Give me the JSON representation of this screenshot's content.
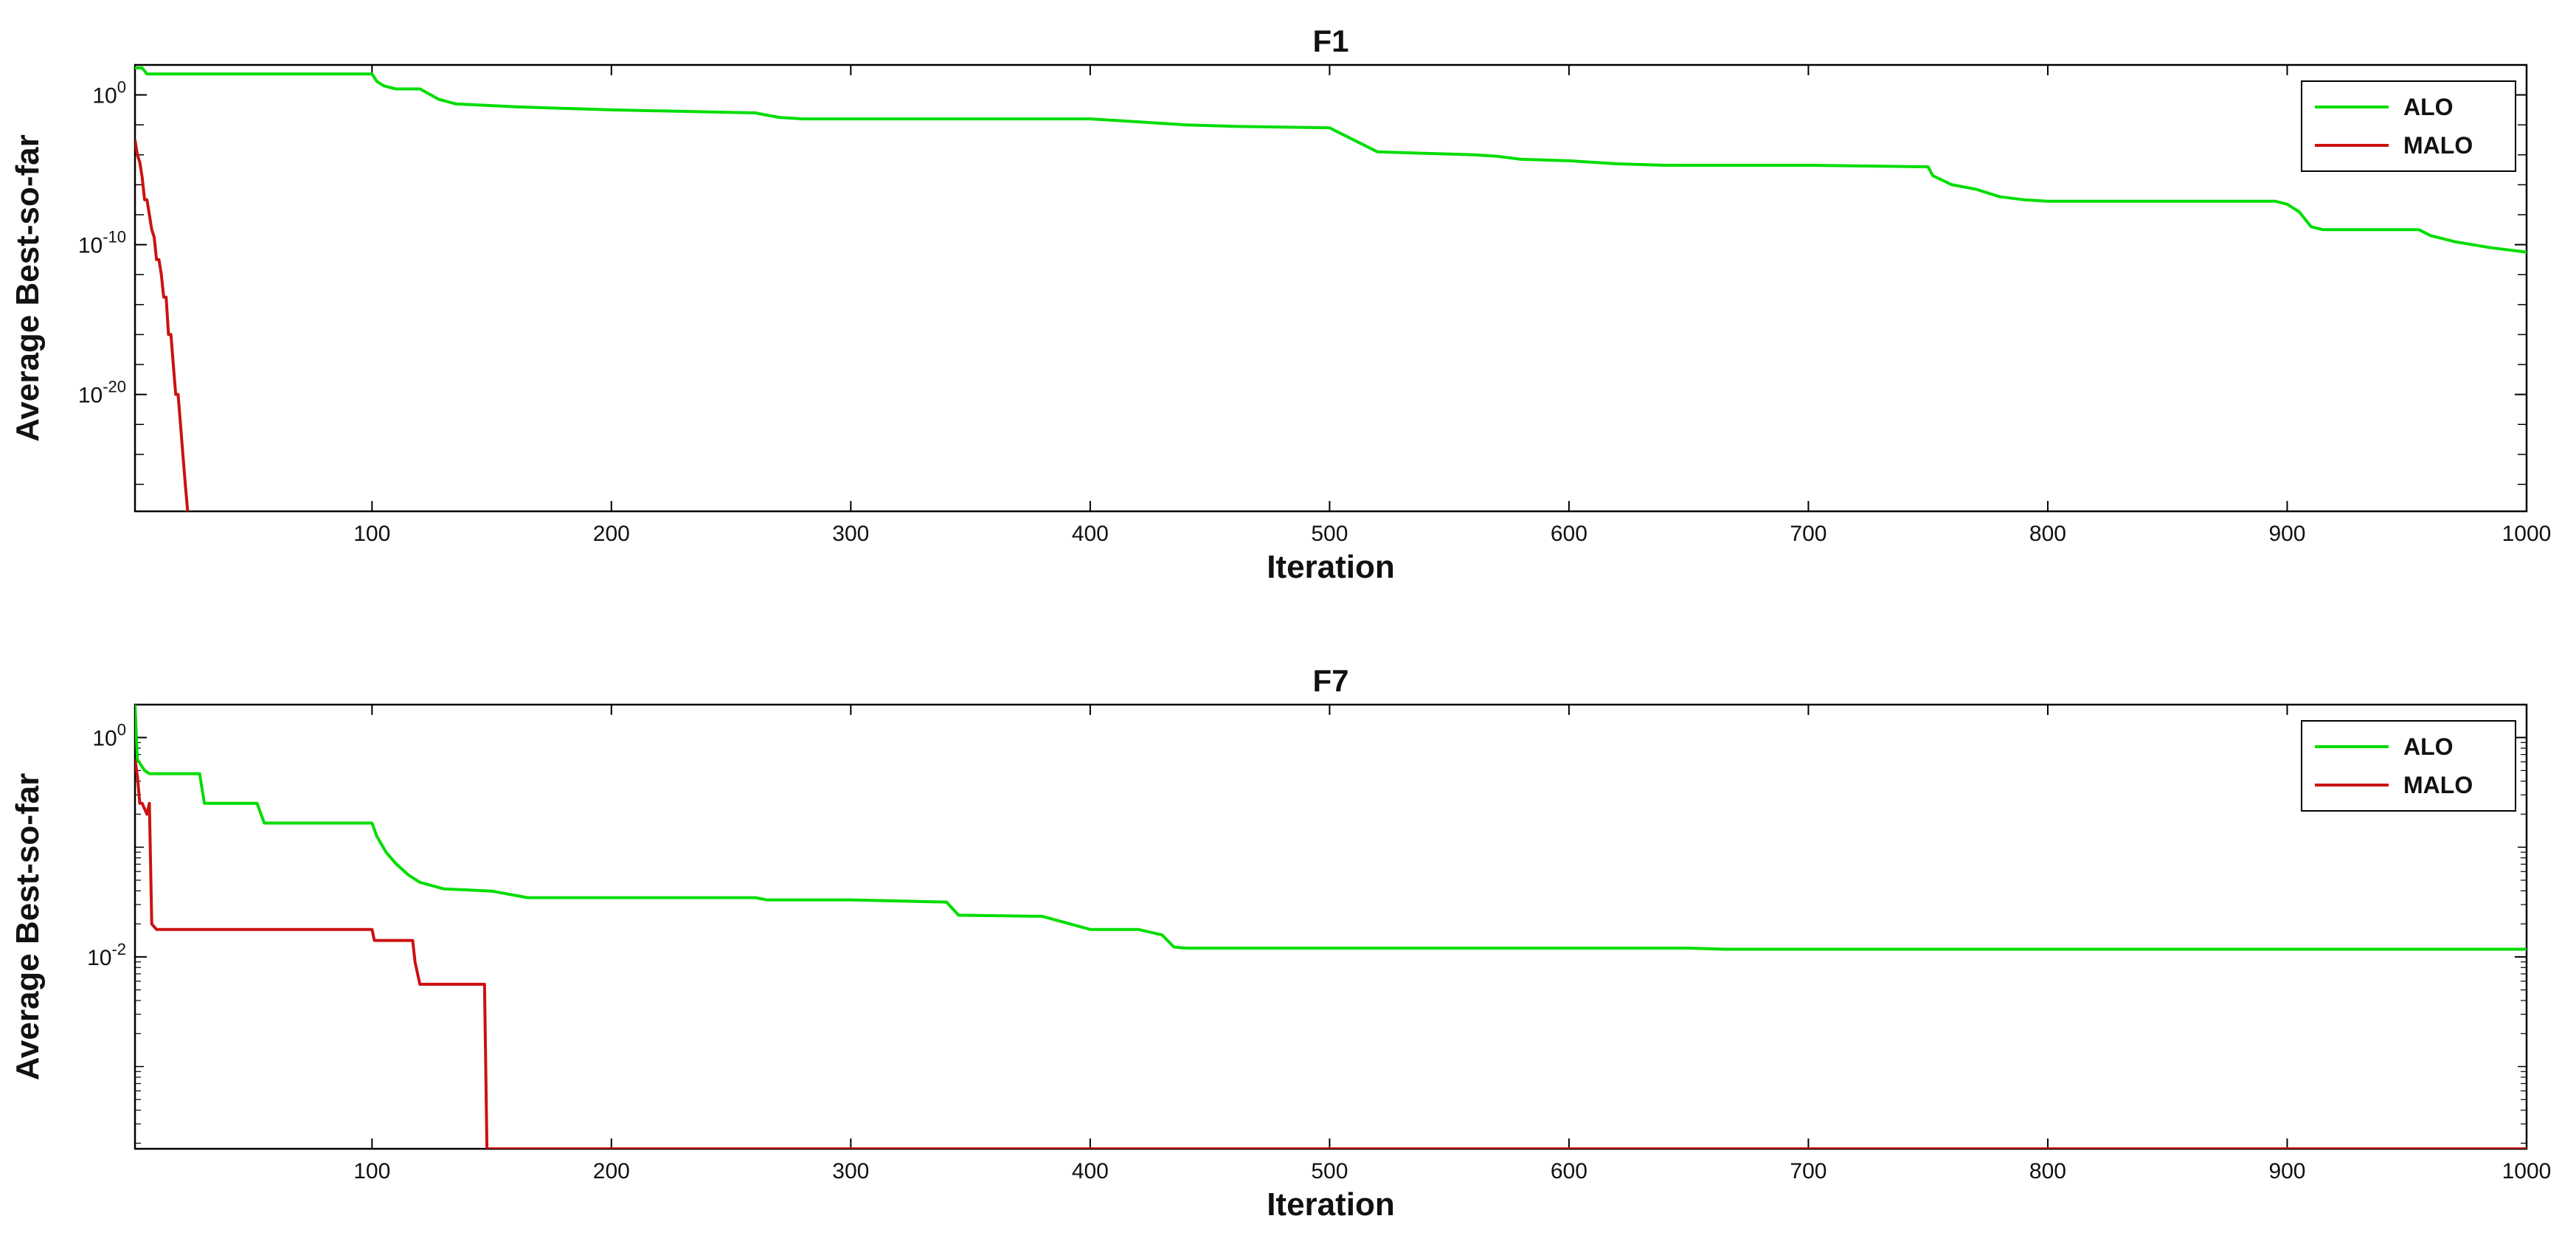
{
  "chart_data": [
    {
      "type": "line",
      "title": "F1",
      "xlabel": "Iteration",
      "ylabel": "Average Best-so-far",
      "xlim": [
        1,
        1000
      ],
      "xticks": [
        100,
        200,
        300,
        400,
        500,
        600,
        700,
        800,
        900,
        1000
      ],
      "yscale": "log",
      "ylim_exponent": [
        -27.8,
        2
      ],
      "yticks": [
        {
          "base": "10",
          "exp": "0",
          "value_exp": 0
        },
        {
          "base": "10",
          "exp": "-10",
          "value_exp": -10
        },
        {
          "base": "10",
          "exp": "-20",
          "value_exp": -20
        }
      ],
      "legend_position": "top-right",
      "series": [
        {
          "name": "ALO",
          "color": "#00dd00",
          "x": [
            1,
            4,
            6,
            100,
            102,
            105,
            110,
            120,
            128,
            135,
            160,
            200,
            260,
            270,
            280,
            300,
            330,
            400,
            420,
            440,
            460,
            500,
            505,
            520,
            560,
            570,
            580,
            600,
            620,
            640,
            700,
            750,
            752,
            760,
            770,
            780,
            790,
            800,
            840,
            895,
            900,
            905,
            910,
            915,
            955,
            960,
            970,
            985,
            1000
          ],
          "y_exp": [
            1.8,
            1.8,
            1.4,
            1.4,
            0.9,
            0.6,
            0.4,
            0.4,
            -0.3,
            -0.6,
            -0.8,
            -1.0,
            -1.2,
            -1.5,
            -1.6,
            -1.6,
            -1.6,
            -1.6,
            -1.8,
            -2.0,
            -2.1,
            -2.2,
            -2.6,
            -3.8,
            -4.0,
            -4.1,
            -4.3,
            -4.4,
            -4.6,
            -4.7,
            -4.7,
            -4.8,
            -5.4,
            -6.0,
            -6.3,
            -6.8,
            -7.0,
            -7.1,
            -7.1,
            -7.1,
            -7.3,
            -7.8,
            -8.8,
            -9.0,
            -9.0,
            -9.4,
            -9.8,
            -10.2,
            -10.5
          ]
        },
        {
          "name": "MALO",
          "color": "#cc1111",
          "x": [
            1,
            2,
            3,
            4,
            5,
            6,
            7,
            8,
            9,
            10,
            11,
            12,
            13,
            14,
            15,
            16,
            17,
            18,
            19,
            20,
            21,
            22,
            23
          ],
          "y_exp": [
            -3,
            -4,
            -4.5,
            -5.5,
            -7,
            -7,
            -8,
            -9,
            -9.5,
            -11,
            -11,
            -12,
            -13.5,
            -13.5,
            -16,
            -16,
            -18,
            -20,
            -20,
            -22,
            -24,
            -26,
            -27.8
          ]
        }
      ]
    },
    {
      "type": "line",
      "title": "F7",
      "xlabel": "Iteration",
      "ylabel": "Average Best-so-far",
      "xlim": [
        1,
        1000
      ],
      "xticks": [
        100,
        200,
        300,
        400,
        500,
        600,
        700,
        800,
        900,
        1000
      ],
      "yscale": "log",
      "ylim_exponent": [
        -3.75,
        0.3
      ],
      "yticks": [
        {
          "base": "10",
          "exp": "0",
          "value_exp": 0
        },
        {
          "base": "10",
          "exp": "-2",
          "value_exp": -2
        }
      ],
      "legend_position": "top-right",
      "series": [
        {
          "name": "ALO",
          "color": "#00dd00",
          "x": [
            1,
            2,
            5,
            7,
            28,
            30,
            52,
            55,
            100,
            102,
            106,
            110,
            115,
            120,
            125,
            130,
            150,
            165,
            200,
            260,
            265,
            300,
            340,
            345,
            380,
            400,
            420,
            430,
            435,
            440,
            500,
            600,
            650,
            665,
            700,
            800,
            900,
            1000
          ],
          "y_exp": [
            0.3,
            -0.2,
            -0.3,
            -0.33,
            -0.33,
            -0.6,
            -0.6,
            -0.78,
            -0.78,
            -0.9,
            -1.05,
            -1.15,
            -1.25,
            -1.32,
            -1.35,
            -1.38,
            -1.4,
            -1.46,
            -1.46,
            -1.46,
            -1.48,
            -1.48,
            -1.5,
            -1.62,
            -1.63,
            -1.75,
            -1.75,
            -1.8,
            -1.91,
            -1.92,
            -1.92,
            -1.92,
            -1.92,
            -1.93,
            -1.93,
            -1.93,
            -1.93,
            -1.93
          ]
        },
        {
          "name": "MALO",
          "color": "#cc1111",
          "x": [
            1,
            2,
            3,
            4,
            6,
            7,
            8,
            10,
            11,
            100,
            101,
            117,
            118,
            120,
            147,
            148,
            150,
            200,
            300,
            400,
            500,
            600,
            700,
            800,
            900,
            1000
          ],
          "y_exp": [
            -0.2,
            -0.35,
            -0.6,
            -0.6,
            -0.7,
            -0.6,
            -1.7,
            -1.75,
            -1.75,
            -1.75,
            -1.85,
            -1.85,
            -2.05,
            -2.25,
            -2.25,
            -3.75,
            -3.75,
            -3.75,
            -3.75,
            -3.75,
            -3.75,
            -3.75,
            -3.75,
            -3.75,
            -3.75,
            -3.75
          ]
        }
      ]
    }
  ]
}
